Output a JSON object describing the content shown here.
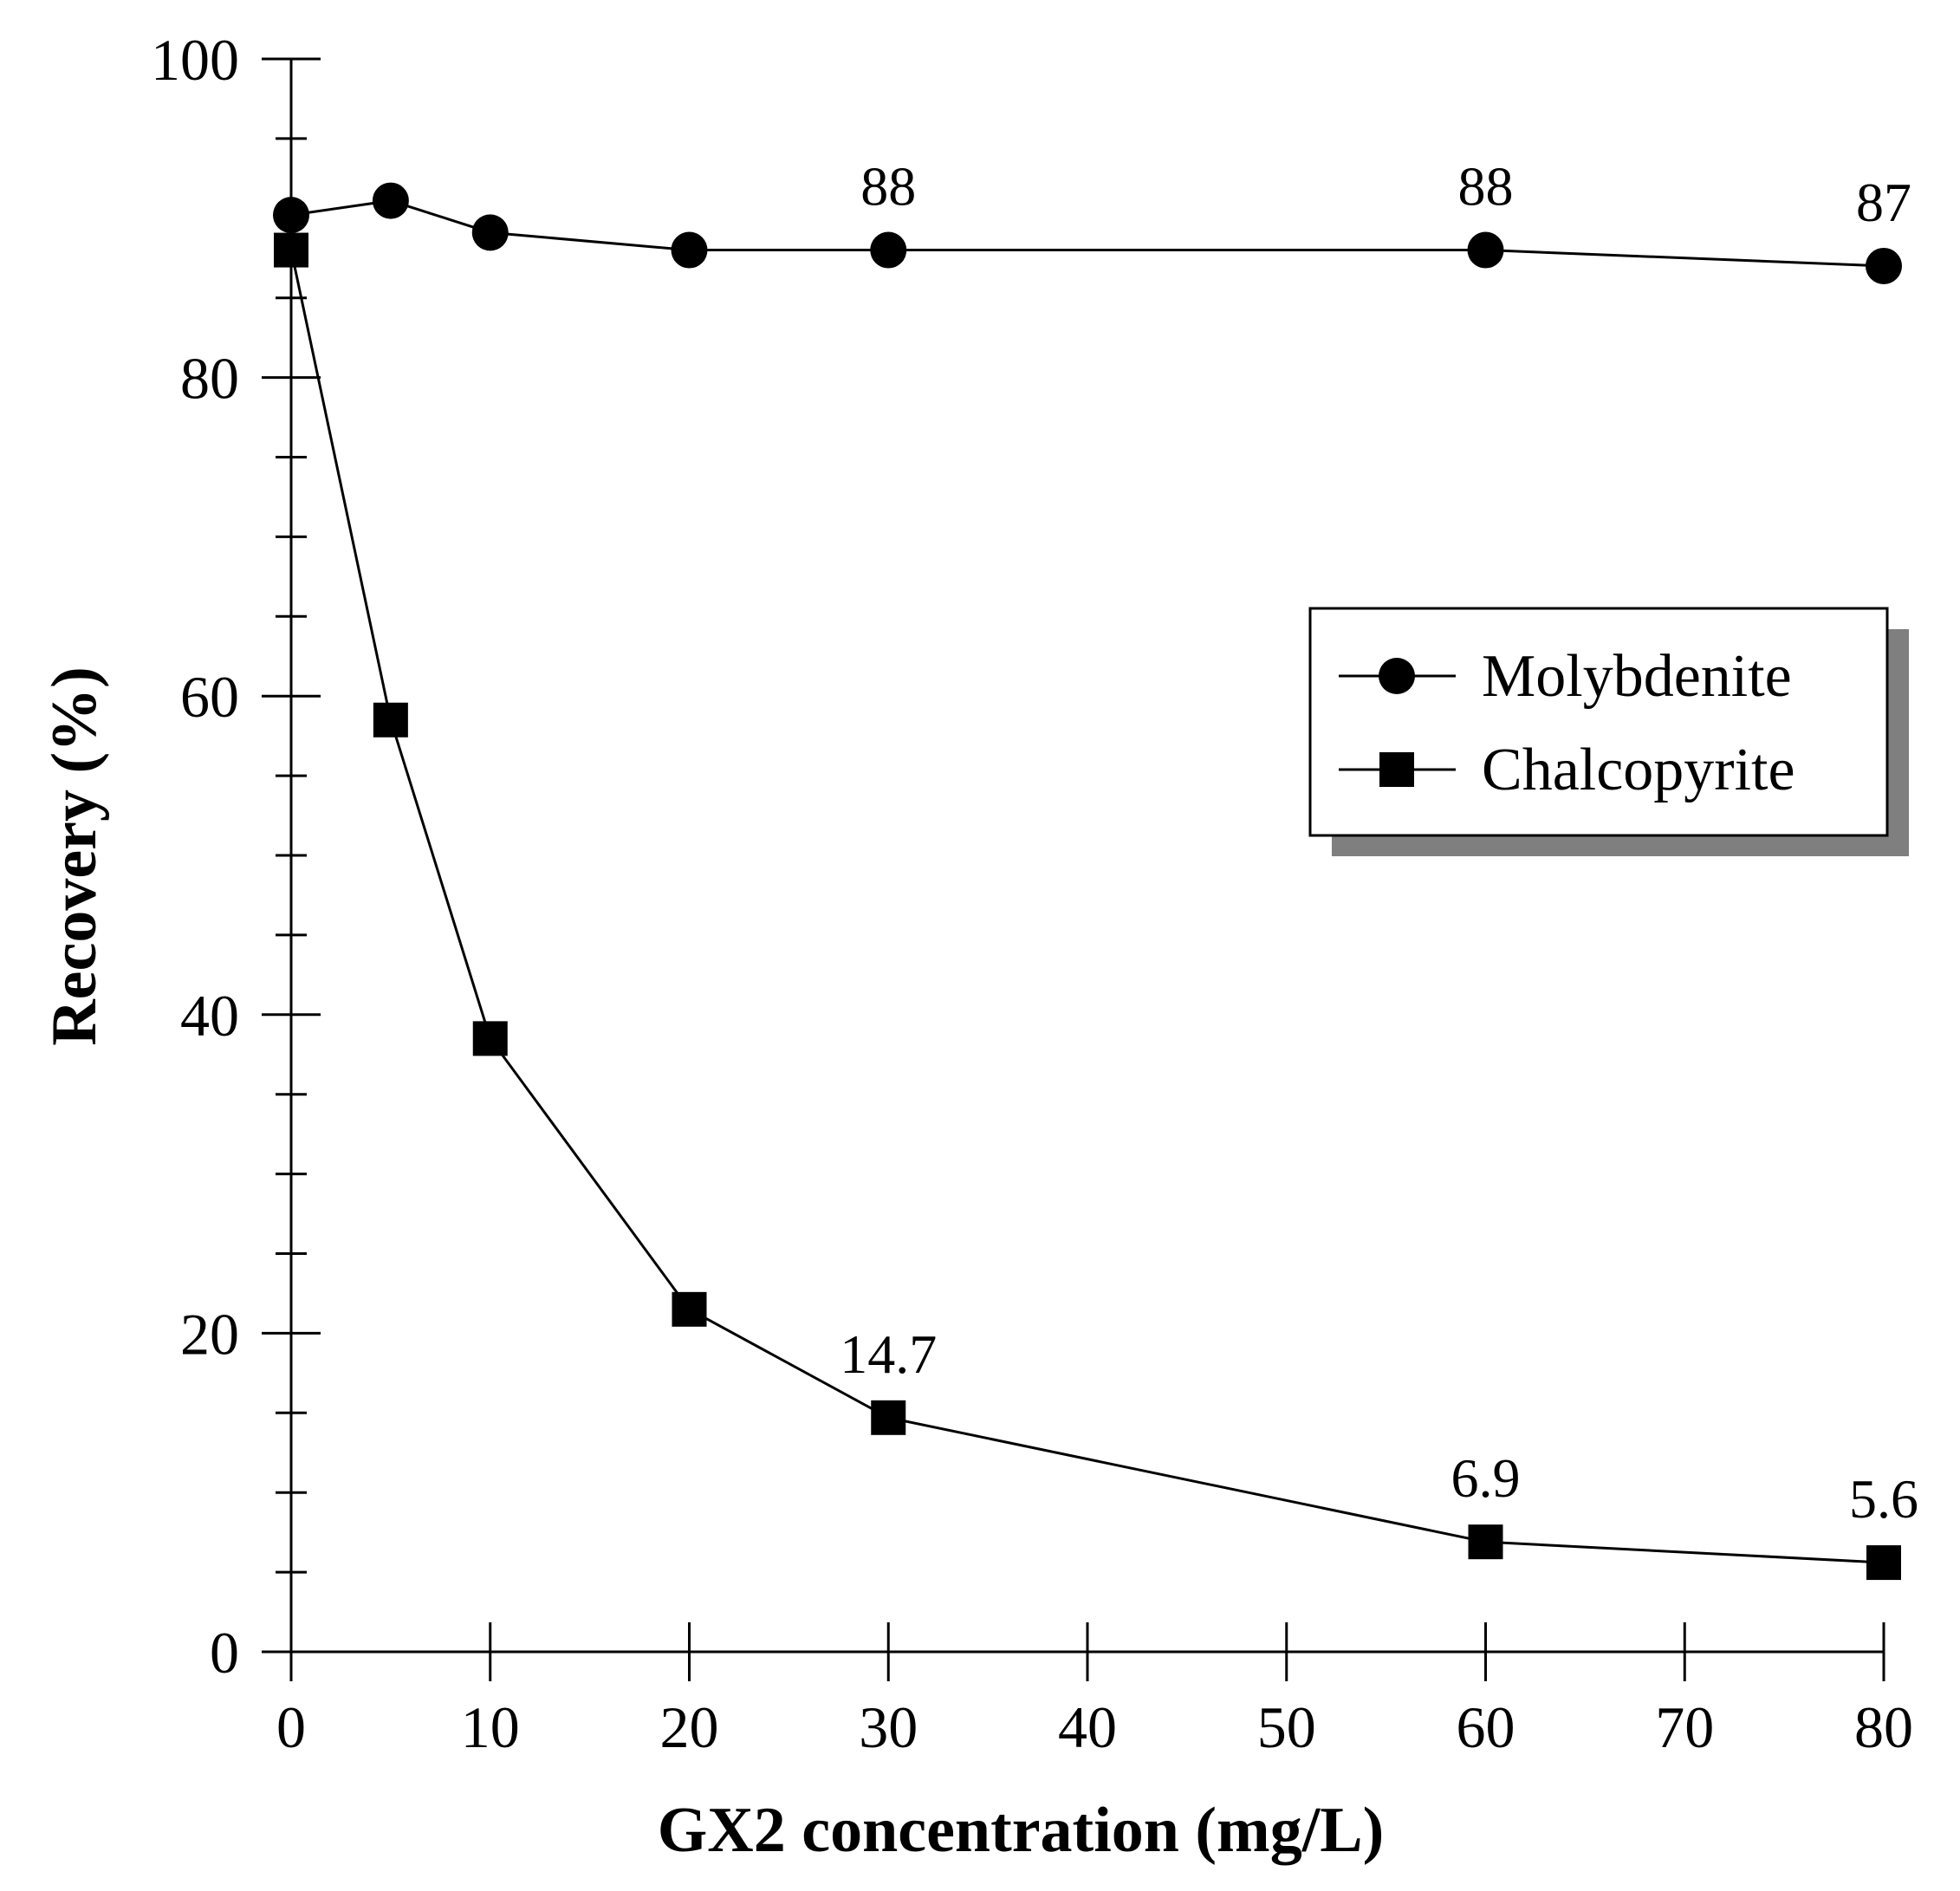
{
  "chart_data": {
    "type": "line",
    "xlabel": "GX2 concentration (mg/L)",
    "ylabel": "Recovery (%)",
    "xlim": [
      0,
      80
    ],
    "ylim": [
      0,
      100
    ],
    "x_ticks": [
      0,
      10,
      20,
      30,
      40,
      50,
      60,
      70,
      80
    ],
    "x_tick_labels": [
      "0",
      "10",
      "20",
      "30",
      "40",
      "50",
      "60",
      "70",
      "80"
    ],
    "y_ticks": [
      0,
      20,
      40,
      60,
      80,
      100
    ],
    "y_tick_labels": [
      "0",
      "20",
      "40",
      "60",
      "80",
      "100"
    ],
    "y_minor_step": 5,
    "grid": false,
    "legend_position": "right-middle",
    "series": [
      {
        "name": "Molybdenite",
        "marker": "circle",
        "x": [
          0,
          5,
          10,
          20,
          30,
          60,
          80
        ],
        "values": [
          90.2,
          91.1,
          89.1,
          88.0,
          88.0,
          88.0,
          87.0
        ]
      },
      {
        "name": "Chalcopyrite",
        "marker": "square",
        "x": [
          0,
          5,
          10,
          20,
          30,
          60,
          80
        ],
        "values": [
          88.0,
          58.5,
          38.5,
          21.5,
          14.7,
          6.9,
          5.6
        ]
      }
    ],
    "annotations": [
      {
        "series": "Molybdenite",
        "x": 30,
        "y": 88.0,
        "text": "88"
      },
      {
        "series": "Molybdenite",
        "x": 60,
        "y": 88.0,
        "text": "88"
      },
      {
        "series": "Molybdenite",
        "x": 80,
        "y": 87.0,
        "text": "87"
      },
      {
        "series": "Chalcopyrite",
        "x": 30,
        "y": 14.7,
        "text": "14.7"
      },
      {
        "series": "Chalcopyrite",
        "x": 60,
        "y": 6.9,
        "text": "6.9"
      },
      {
        "series": "Chalcopyrite",
        "x": 80,
        "y": 5.6,
        "text": "5.6"
      }
    ]
  }
}
